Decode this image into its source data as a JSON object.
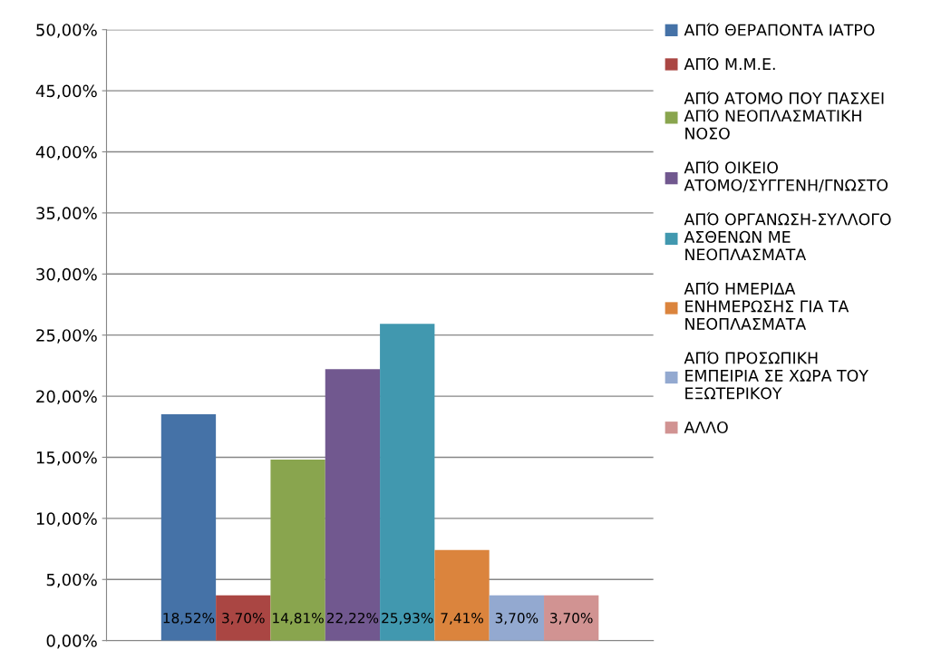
{
  "chart_data": {
    "type": "bar",
    "categories": [
      null
    ],
    "series": [
      {
        "name": "ΑΠΌ ΘΕΡΑΠΟΝΤΑ ΙΑΤΡΟ",
        "color": "#4572a7",
        "values": [
          18.52
        ],
        "value_labels": [
          "18,52%"
        ]
      },
      {
        "name": "ΑΠΌ Μ.Μ.Ε.",
        "color": "#aa4643",
        "values": [
          3.7
        ],
        "value_labels": [
          "3,70%"
        ]
      },
      {
        "name": "ΑΠΌ ΑΤΟΜΟ ΠΟΥ ΠΑΣΧΕΙ\nΑΠΌ ΝΕΟΠΛΑΣΜΑΤΙΚΗ\nΝΟΣΟ",
        "color": "#89a54e",
        "values": [
          14.81
        ],
        "value_labels": [
          "14,81%"
        ]
      },
      {
        "name": "ΑΠΌ ΟΙΚΕΙΟ\nΑΤΟΜΟ/ΣΥΓΓΕΝΗ/ΓΝΩΣΤΟ",
        "color": "#71588f",
        "values": [
          22.22
        ],
        "value_labels": [
          "22,22%"
        ]
      },
      {
        "name": "ΑΠΌ ΟΡΓΑΝΩΣΗ-ΣΥΛΛΟΓΟ\nΑΣΘΕΝΩΝ ΜΕ\nΝΕΟΠΛΑΣΜΑΤΑ",
        "color": "#4198af",
        "values": [
          25.93
        ],
        "value_labels": [
          "25,93%"
        ]
      },
      {
        "name": "ΑΠΌ ΗΜΕΡΙΔΑ\nΕΝΗΜΕΡΩΣΗΣ ΓΙΑ ΤΑ\nΝΕΟΠΛΑΣΜΑΤΑ",
        "color": "#db843d",
        "values": [
          7.41
        ],
        "value_labels": [
          "7,41%"
        ]
      },
      {
        "name": "ΑΠΌ ΠΡΟΣΩΠΙΚΗ\nΕΜΠΕΙΡΙΑ ΣΕ ΧΩΡΑ ΤΟΥ\nΕΞΩΤΕΡΙΚΟΥ",
        "color": "#93a9d0",
        "values": [
          3.7
        ],
        "value_labels": [
          "3,70%"
        ]
      },
      {
        "name": "ΑΛΛΟ",
        "color": "#d19392",
        "values": [
          3.7
        ],
        "value_labels": [
          "3,70%"
        ]
      }
    ],
    "ylim": [
      0,
      50
    ],
    "yticks": [
      {
        "value": 0,
        "label": "0,00%"
      },
      {
        "value": 5,
        "label": "5,00%"
      },
      {
        "value": 10,
        "label": "10,00%"
      },
      {
        "value": 15,
        "label": "15,00%"
      },
      {
        "value": 20,
        "label": "20,00%"
      },
      {
        "value": 25,
        "label": "25,00%"
      },
      {
        "value": 30,
        "label": "30,00%"
      },
      {
        "value": 35,
        "label": "35,00%"
      },
      {
        "value": 40,
        "label": "40,00%"
      },
      {
        "value": 45,
        "label": "45,00%"
      },
      {
        "value": 50,
        "label": "50,00%"
      }
    ],
    "grid": "y",
    "legend": "right"
  }
}
